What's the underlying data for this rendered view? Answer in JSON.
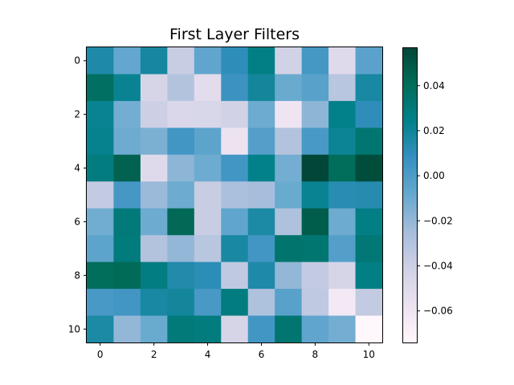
{
  "chart_data": {
    "type": "heatmap",
    "title": "First Layer Filters",
    "xlabel": "",
    "ylabel": "",
    "x_ticks": [
      0,
      2,
      4,
      6,
      8,
      10
    ],
    "y_ticks": [
      0,
      2,
      4,
      6,
      8,
      10
    ],
    "colormap": "PuBuGn",
    "colormap_stops": [
      "#fff7fb",
      "#ece2f0",
      "#d0d1e6",
      "#a6bddb",
      "#67a9cf",
      "#3690c0",
      "#02818a",
      "#016c59",
      "#014636"
    ],
    "vmin": -0.074,
    "vmax": 0.057,
    "colorbar_ticks": [
      0.04,
      0.02,
      0.0,
      -0.02,
      -0.04,
      -0.06
    ],
    "colorbar_tick_labels": [
      "0.04",
      "0.02",
      "0.00",
      "−0.02",
      "−0.04",
      "−0.06"
    ],
    "values": [
      [
        0.015,
        -0.007,
        0.018,
        -0.038,
        -0.006,
        0.01,
        0.026,
        -0.042,
        0.003,
        -0.05,
        -0.004
      ],
      [
        0.038,
        0.022,
        -0.045,
        -0.03,
        -0.052,
        0.006,
        0.019,
        -0.009,
        -0.003,
        -0.032,
        0.017
      ],
      [
        0.022,
        -0.012,
        -0.04,
        -0.047,
        -0.046,
        -0.042,
        -0.01,
        -0.06,
        -0.018,
        0.024,
        0.01
      ],
      [
        0.023,
        -0.01,
        -0.014,
        0.004,
        -0.005,
        -0.058,
        -0.002,
        -0.03,
        0.002,
        0.021,
        0.033
      ],
      [
        0.028,
        0.045,
        -0.05,
        -0.018,
        -0.01,
        0.004,
        0.024,
        -0.012,
        0.057,
        0.04,
        0.054
      ],
      [
        -0.036,
        0.003,
        -0.022,
        -0.01,
        -0.038,
        -0.027,
        -0.025,
        -0.009,
        0.022,
        0.012,
        0.013
      ],
      [
        -0.011,
        0.03,
        -0.01,
        0.042,
        -0.038,
        -0.006,
        0.016,
        -0.028,
        0.047,
        -0.01,
        0.026
      ],
      [
        -0.005,
        0.029,
        -0.03,
        -0.02,
        -0.032,
        0.017,
        0.004,
        0.034,
        0.033,
        -0.002,
        0.031
      ],
      [
        0.04,
        0.041,
        0.027,
        0.014,
        0.011,
        -0.035,
        0.015,
        -0.02,
        -0.036,
        -0.045,
        0.026
      ],
      [
        0.002,
        0.004,
        0.017,
        0.019,
        0.002,
        0.028,
        -0.028,
        -0.003,
        -0.035,
        -0.063,
        -0.036
      ],
      [
        0.016,
        -0.02,
        -0.009,
        0.03,
        0.028,
        -0.045,
        0.004,
        0.033,
        -0.006,
        -0.012,
        -0.074
      ]
    ]
  }
}
